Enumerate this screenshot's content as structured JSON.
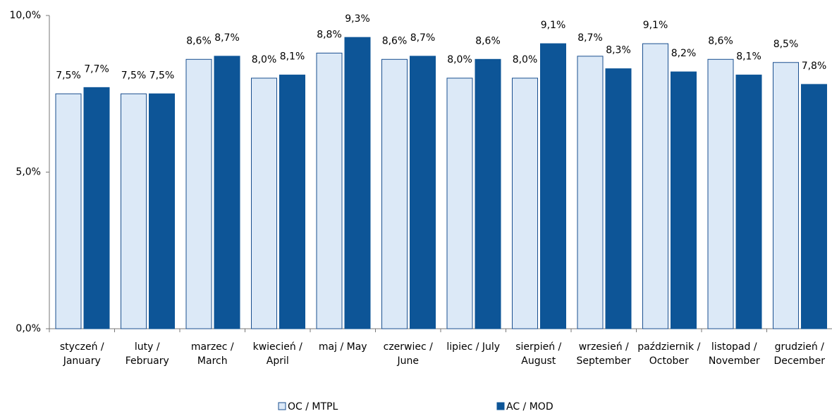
{
  "chart_data": {
    "type": "bar",
    "categories": [
      [
        "styczeń /",
        "January"
      ],
      [
        "luty /",
        "February"
      ],
      [
        "marzec /",
        "March"
      ],
      [
        "kwiecień /",
        "April"
      ],
      [
        "maj / May"
      ],
      [
        "czerwiec /",
        "June"
      ],
      [
        "lipiec / July"
      ],
      [
        "sierpień /",
        "August"
      ],
      [
        "wrzesień /",
        "September"
      ],
      [
        "październik /",
        "October"
      ],
      [
        "listopad /",
        "November"
      ],
      [
        "grudzień /",
        "December"
      ]
    ],
    "series": [
      {
        "name": "OC / MTPL",
        "color": "#dce9f7",
        "values": [
          7.5,
          7.5,
          8.6,
          8.0,
          8.8,
          8.6,
          8.0,
          8.0,
          8.7,
          9.1,
          8.6,
          8.5
        ],
        "value_labels": [
          "7,5%",
          "7,5%",
          "8,6%",
          "8,0%",
          "8,8%",
          "8,6%",
          "8,0%",
          "8,0%",
          "8,7%",
          "9,1%",
          "8,6%",
          "8,5%"
        ]
      },
      {
        "name": "AC / MOD",
        "color": "#0d5597",
        "values": [
          7.7,
          7.5,
          8.7,
          8.1,
          9.3,
          8.7,
          8.6,
          9.1,
          8.3,
          8.2,
          8.1,
          7.8
        ],
        "value_labels": [
          "7,7%",
          "7,5%",
          "8,7%",
          "8,1%",
          "9,3%",
          "8,7%",
          "8,6%",
          "9,1%",
          "8,3%",
          "8,2%",
          "8,1%",
          "7,8%"
        ]
      }
    ],
    "ylim": [
      0,
      10
    ],
    "yticks": [
      {
        "value": 0,
        "label": "0,0%"
      },
      {
        "value": 5,
        "label": "5,0%"
      },
      {
        "value": 10,
        "label": "10,0%"
      }
    ],
    "legend": "bottom"
  }
}
